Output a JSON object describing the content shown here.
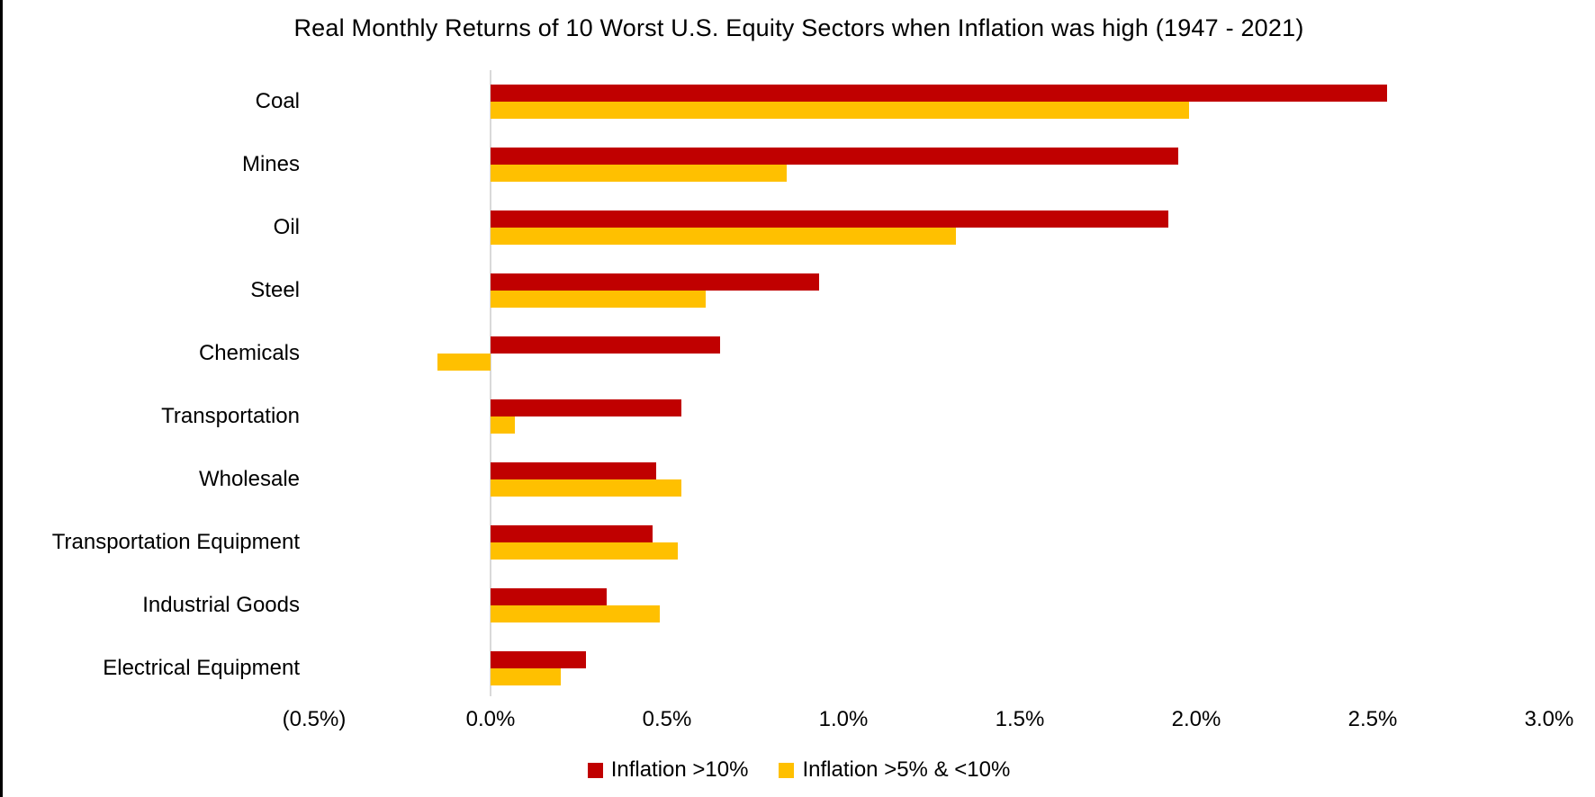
{
  "chart_data": {
    "type": "bar",
    "orientation": "horizontal",
    "title": "Real Monthly Returns of 10 Worst U.S. Equity Sectors when Inflation was high (1947 - 2021)",
    "categories": [
      "Coal",
      "Mines",
      "Oil",
      "Steel",
      "Chemicals",
      "Transportation",
      "Wholesale",
      "Transportation Equipment",
      "Industrial Goods",
      "Electrical Equipment"
    ],
    "series": [
      {
        "name": "Inflation >10%",
        "color": "#c00000",
        "values": [
          2.54,
          1.95,
          1.92,
          0.93,
          0.65,
          0.54,
          0.47,
          0.46,
          0.33,
          0.27
        ]
      },
      {
        "name": "Inflation >5% & <10%",
        "color": "#ffc000",
        "values": [
          1.98,
          0.84,
          1.32,
          0.61,
          -0.15,
          0.07,
          0.54,
          0.53,
          0.48,
          0.2
        ]
      }
    ],
    "x_ticks": [
      {
        "label": "(0.5%)",
        "value": -0.5
      },
      {
        "label": "0.0%",
        "value": 0.0
      },
      {
        "label": "0.5%",
        "value": 0.5
      },
      {
        "label": "1.0%",
        "value": 1.0
      },
      {
        "label": "1.5%",
        "value": 1.5
      },
      {
        "label": "2.0%",
        "value": 2.0
      },
      {
        "label": "2.5%",
        "value": 2.5
      },
      {
        "label": "3.0%",
        "value": 3.0
      }
    ],
    "xlim": [
      -0.5,
      3.0
    ],
    "value_unit": "%",
    "grid": "off",
    "legend_position": "bottom-center",
    "axis_line_color": "#d9d9d9"
  }
}
